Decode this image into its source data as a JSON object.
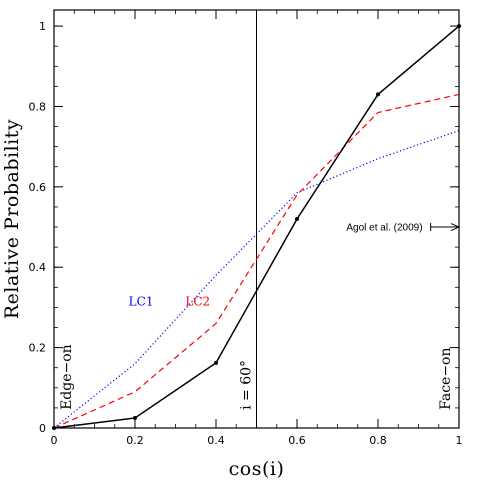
{
  "chart_data": {
    "type": "line",
    "xlabel": "cos(i)",
    "ylabel": "Relative Probability",
    "xlim": [
      0,
      1
    ],
    "ylim": [
      0,
      1.04
    ],
    "x_ticks": [
      "0",
      "0.2",
      "0.4",
      "0.6",
      "0.8",
      "1"
    ],
    "y_ticks": [
      "0",
      "0.2",
      "0.4",
      "0.6",
      "0.8",
      "1"
    ],
    "x_tick_values": [
      0,
      0.2,
      0.4,
      0.6,
      0.8,
      1.0
    ],
    "y_tick_values": [
      0,
      0.2,
      0.4,
      0.6,
      0.8,
      1.0
    ],
    "x_minor_step": 0.05,
    "y_minor_step": 0.05,
    "series": [
      {
        "name": "LC1",
        "color": "#0000ff",
        "style": "dotted",
        "x": [
          0,
          0.2,
          0.4,
          0.6,
          0.8,
          1.0
        ],
        "y": [
          0.0,
          0.16,
          0.38,
          0.585,
          0.67,
          0.74
        ]
      },
      {
        "name": "LC2",
        "color": "#ff0000",
        "style": "dashed",
        "x": [
          0,
          0.2,
          0.4,
          0.6,
          0.8,
          1.0
        ],
        "y": [
          0.0,
          0.09,
          0.26,
          0.58,
          0.785,
          0.83
        ]
      },
      {
        "color": "#000000",
        "style": "solid",
        "markers": true,
        "x": [
          0,
          0.2,
          0.4,
          0.6,
          0.8,
          1.0
        ],
        "y": [
          0.0,
          0.025,
          0.162,
          0.52,
          0.83,
          1.0
        ]
      }
    ],
    "vertical_line": {
      "x": 0.5,
      "label": "i = 60°"
    },
    "annotations": {
      "edge_on": "Edge−on",
      "face_on": "Face−on",
      "agol": {
        "text": "Agol et al. (2009)",
        "x": 1.0,
        "y": 0.5
      }
    },
    "series_labels": [
      {
        "text": "LC1",
        "x": 0.215,
        "y": 0.305,
        "color": "#0000ff"
      },
      {
        "text": "LC2",
        "x": 0.355,
        "y": 0.305,
        "color": "#ff0000"
      }
    ]
  }
}
